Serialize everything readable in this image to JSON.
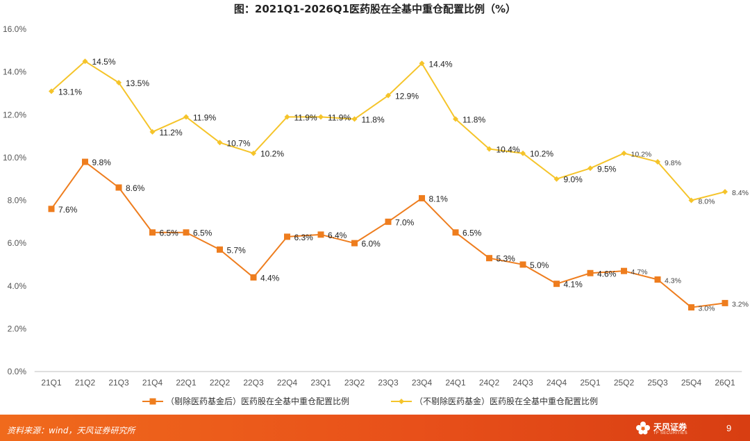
{
  "title": "图：2021Q1-2026Q1医药股在全基中重仓配置比例（%）",
  "chart_data": {
    "type": "line",
    "categories": [
      "21Q1",
      "21Q2",
      "21Q3",
      "21Q4",
      "22Q1",
      "22Q2",
      "22Q3",
      "22Q4",
      "23Q1",
      "23Q2",
      "23Q3",
      "23Q4",
      "24Q1",
      "24Q2",
      "24Q3",
      "24Q4",
      "25Q1",
      "25Q2",
      "25Q3",
      "25Q4",
      "26Q1"
    ],
    "ylim": [
      0,
      16
    ],
    "yticks": [
      "0.0%",
      "2.0%",
      "4.0%",
      "6.0%",
      "8.0%",
      "10.0%",
      "12.0%",
      "14.0%",
      "16.0%"
    ],
    "grid": false,
    "legend_position": "bottom",
    "series": [
      {
        "name": "（剔除医药基金后）医药股在全基中重仓配置比例",
        "color": "#ee7d1e",
        "marker": "square",
        "values": [
          7.6,
          9.8,
          8.6,
          6.5,
          6.5,
          5.7,
          4.4,
          6.3,
          6.4,
          6.0,
          7.0,
          8.1,
          6.5,
          5.3,
          5.0,
          4.1,
          4.6,
          4.7,
          4.3,
          3.0,
          3.2
        ],
        "labels": [
          "7.6%",
          "9.8%",
          "8.6%",
          "6.5%",
          "6.5%",
          "5.7%",
          "4.4%",
          "6.3%",
          "6.4%",
          "6.0%",
          "7.0%",
          "8.1%",
          "6.5%",
          "5.3%",
          "5.0%",
          "4.1%",
          "4.6%",
          "4.7%",
          "4.3%",
          "3.0%",
          "3.2%"
        ]
      },
      {
        "name": "（不剔除医药基金）医药股在全基中重仓配置比例",
        "color": "#f5c42a",
        "marker": "diamond",
        "values": [
          13.1,
          14.5,
          13.5,
          11.2,
          11.9,
          10.7,
          10.2,
          11.9,
          11.9,
          11.8,
          12.9,
          14.4,
          11.8,
          10.4,
          10.2,
          9.0,
          9.5,
          10.2,
          9.8,
          8.0,
          8.4
        ],
        "labels": [
          "13.1%",
          "14.5%",
          "13.5%",
          "11.2%",
          "11.9%",
          "10.7%",
          "10.2%",
          "11.9%",
          "11.9%",
          "11.8%",
          "12.9%",
          "14.4%",
          "11.8%",
          "10.4%",
          "10.2%",
          "9.0%",
          "9.5%",
          "10.2%",
          "9.8%",
          "8.0%",
          "8.4%"
        ]
      }
    ]
  },
  "footer": {
    "source": "资料来源：wind，天风证券研究所",
    "logo_name": "天风证券",
    "logo_sub": "TF SECURITIES",
    "page_number": "9"
  }
}
